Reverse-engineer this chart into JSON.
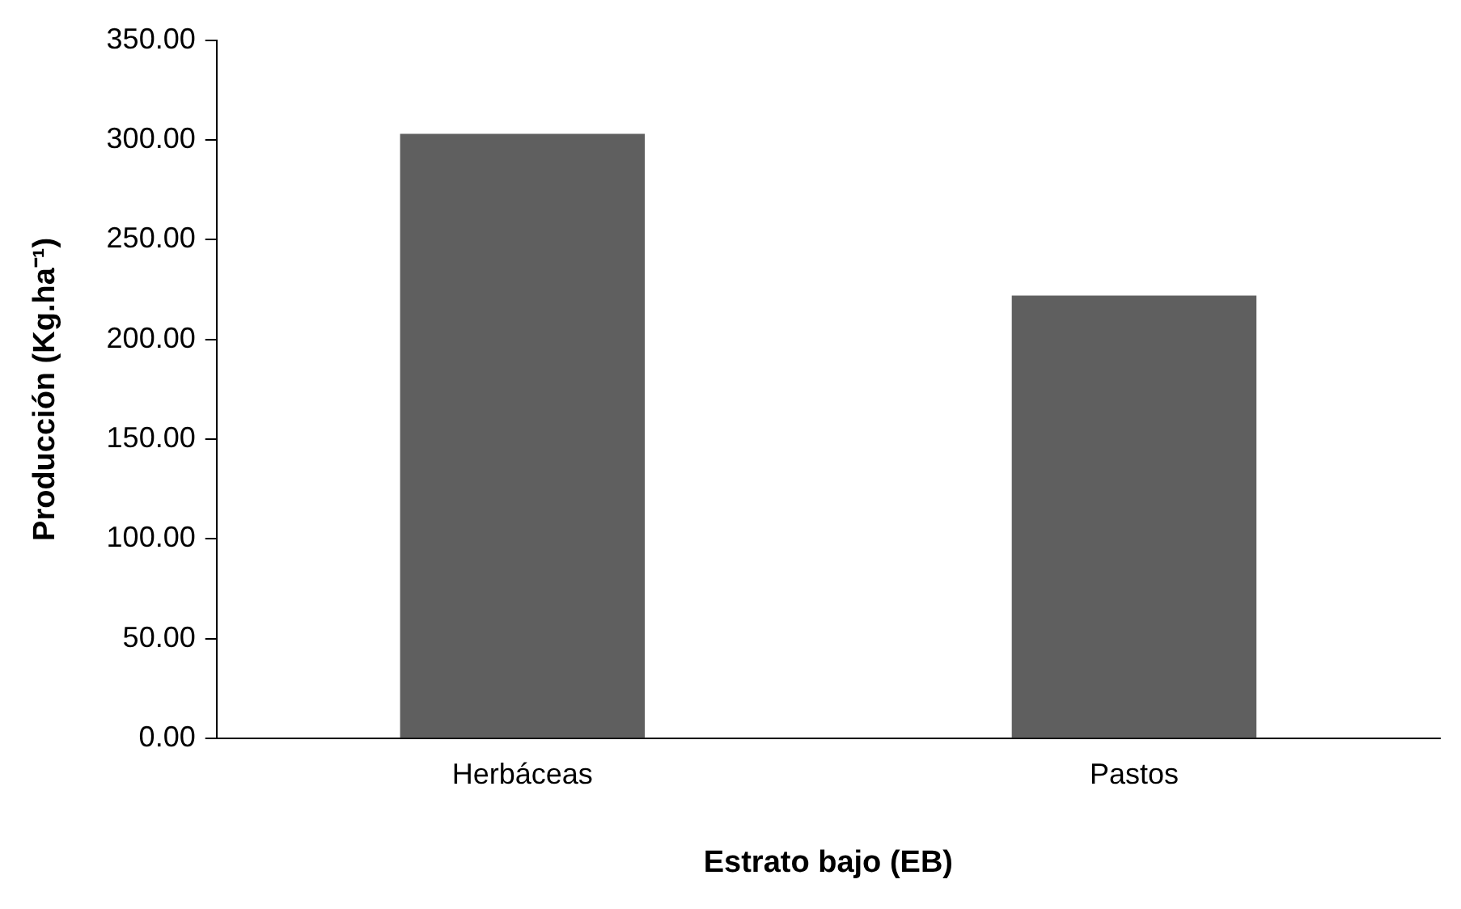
{
  "chart_data": {
    "type": "bar",
    "xlabel": "Estrato bajo (EB)",
    "ylabel": "Producción (Kg.ha⁻¹)",
    "categories": [
      "Herbáceas",
      "Pastos"
    ],
    "series": [
      {
        "color": "#5f5f5f",
        "values": [
          303,
          222
        ]
      }
    ],
    "ylim": [
      0,
      350
    ],
    "yticks": [
      {
        "value": 0,
        "label": "0.00"
      },
      {
        "value": 50,
        "label": "50.00"
      },
      {
        "value": 100,
        "label": "100.00"
      },
      {
        "value": 150,
        "label": "150.00"
      },
      {
        "value": 200,
        "label": "200.00"
      },
      {
        "value": 250,
        "label": "250.00"
      },
      {
        "value": 300,
        "label": "300.00"
      },
      {
        "value": 350,
        "label": "350.00"
      }
    ],
    "grid": false,
    "legend": false
  }
}
